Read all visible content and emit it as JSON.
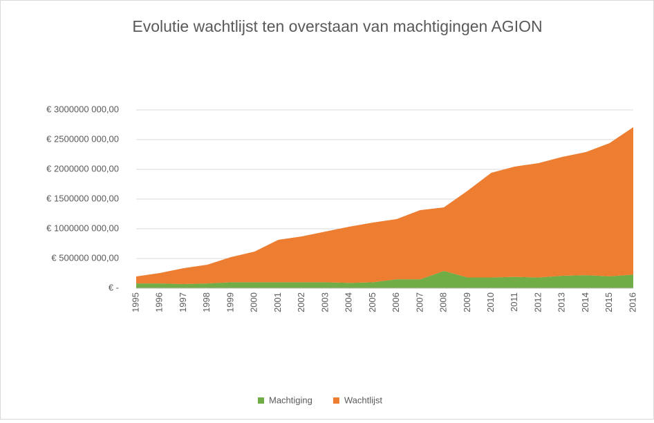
{
  "chart_data": {
    "type": "stacked_area",
    "title": "Evolutie wachtlijst ten overstaan van machtigingen AGION",
    "categories": [
      "1995",
      "1996",
      "1997",
      "1998",
      "1999",
      "2000",
      "2001",
      "2002",
      "2003",
      "2004",
      "2005",
      "2006",
      "2007",
      "2008",
      "2009",
      "2010",
      "2011",
      "2012",
      "2013",
      "2014",
      "2015",
      "2016"
    ],
    "series": [
      {
        "name": "Machtiging",
        "color": "#70ad47",
        "values": [
          80000000,
          80000000,
          70000000,
          80000000,
          100000000,
          100000000,
          100000000,
          100000000,
          100000000,
          90000000,
          100000000,
          150000000,
          150000000,
          290000000,
          180000000,
          180000000,
          190000000,
          180000000,
          210000000,
          220000000,
          200000000,
          230000000
        ]
      },
      {
        "name": "Wachtlijst",
        "color": "#ed7d31",
        "values": [
          118000000,
          176000000,
          267000000,
          315000000,
          423000000,
          516000000,
          714000000,
          772000000,
          853000000,
          945000000,
          1005000000,
          1013000000,
          1164000000,
          1070000000,
          1460000000,
          1762000000,
          1857000000,
          1925000000,
          1999000000,
          2071000000,
          2242000000,
          2479000000
        ]
      }
    ],
    "ylim": [
      0,
      3000000000
    ],
    "yticks": [
      {
        "value": 0,
        "label": "€ -"
      },
      {
        "value": 500000000,
        "label": "€ 500000 000,00"
      },
      {
        "value": 1000000000,
        "label": "€ 1000000 000,00"
      },
      {
        "value": 1500000000,
        "label": "€ 1500000 000,00"
      },
      {
        "value": 2000000000,
        "label": "€ 2000000 000,00"
      },
      {
        "value": 2500000000,
        "label": "€ 2500000 000,00"
      },
      {
        "value": 3000000000,
        "label": "€ 3000000 000,00"
      }
    ],
    "grid": true,
    "legend": "bottom"
  }
}
